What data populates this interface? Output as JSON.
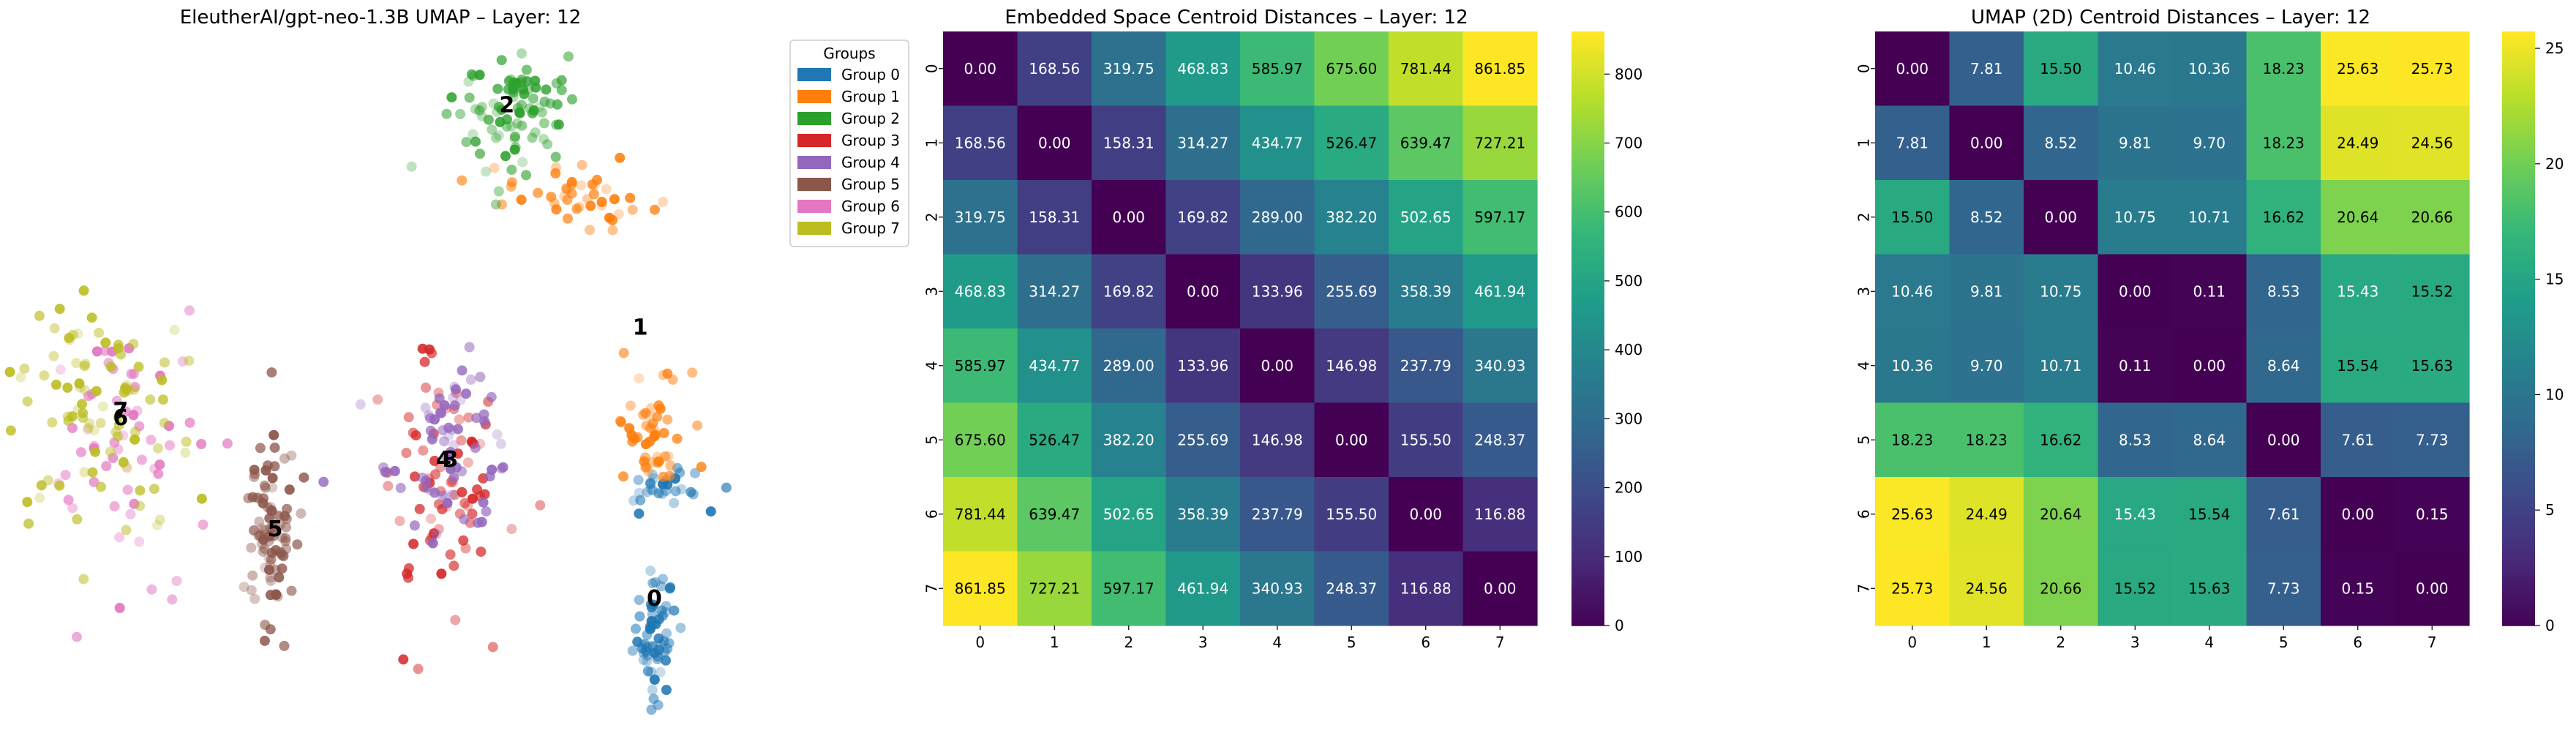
{
  "chart_data": [
    {
      "type": "scatter",
      "title": "EleutherAI/gpt-neo-1.3B UMAP – Layer: 12",
      "legend": {
        "title": "Groups",
        "placement": "top-right",
        "entries": [
          "Group 0",
          "Group 1",
          "Group 2",
          "Group 3",
          "Group 4",
          "Group 5",
          "Group 6",
          "Group 7"
        ]
      },
      "axes_visible": false,
      "xlim": [
        0,
        10
      ],
      "ylim": [
        0,
        10
      ],
      "colors": [
        "#1f77b4",
        "#ff7f0e",
        "#2ca02c",
        "#d62728",
        "#9467bd",
        "#8c564b",
        "#e377c2",
        "#bcbd22"
      ],
      "centroid_labels": [
        {
          "label": "0",
          "x": 8.9,
          "y": 1.9
        },
        {
          "label": "1",
          "x": 8.7,
          "y": 5.8
        },
        {
          "label": "2",
          "x": 6.8,
          "y": 9.0
        },
        {
          "label": "3",
          "x": 6.0,
          "y": 3.9
        },
        {
          "label": "4",
          "x": 5.9,
          "y": 3.9
        },
        {
          "label": "5",
          "x": 3.5,
          "y": 2.9
        },
        {
          "label": "6",
          "x": 1.3,
          "y": 4.5
        },
        {
          "label": "7",
          "x": 1.3,
          "y": 4.6
        }
      ],
      "series": [
        {
          "name": "Group 0",
          "clusters": [
            {
              "cx": 8.9,
              "cy": 1.4,
              "sx": 0.15,
              "sy": 0.45,
              "n": 60
            },
            {
              "cx": 9.0,
              "cy": 3.5,
              "sx": 0.35,
              "sy": 0.15,
              "n": 30
            }
          ]
        },
        {
          "name": "Group 1",
          "clusters": [
            {
              "cx": 8.85,
              "cy": 4.3,
              "sx": 0.25,
              "sy": 0.45,
              "n": 50
            },
            {
              "cx": 7.9,
              "cy": 7.7,
              "sx": 0.5,
              "sy": 0.2,
              "n": 45
            }
          ]
        },
        {
          "name": "Group 2",
          "clusters": [
            {
              "cx": 6.8,
              "cy": 8.9,
              "sx": 0.4,
              "sy": 0.5,
              "n": 90
            }
          ]
        },
        {
          "name": "Group 3",
          "clusters": [
            {
              "cx": 5.8,
              "cy": 3.6,
              "sx": 0.45,
              "sy": 0.9,
              "n": 80
            }
          ]
        },
        {
          "name": "Group 4",
          "clusters": [
            {
              "cx": 6.0,
              "cy": 4.1,
              "sx": 0.45,
              "sy": 0.6,
              "n": 70
            }
          ]
        },
        {
          "name": "Group 5",
          "clusters": [
            {
              "cx": 3.4,
              "cy": 2.8,
              "sx": 0.2,
              "sy": 0.75,
              "n": 90
            }
          ]
        },
        {
          "name": "Group 6",
          "clusters": [
            {
              "cx": 1.3,
              "cy": 4.4,
              "sx": 0.55,
              "sy": 0.9,
              "n": 60
            }
          ]
        },
        {
          "name": "Group 7",
          "clusters": [
            {
              "cx": 1.0,
              "cy": 4.6,
              "sx": 0.7,
              "sy": 0.85,
              "n": 90
            }
          ]
        }
      ]
    },
    {
      "type": "heatmap",
      "title": "Embedded Space Centroid Distances – Layer: 12",
      "x_categories": [
        "0",
        "1",
        "2",
        "3",
        "4",
        "5",
        "6",
        "7"
      ],
      "y_categories": [
        "0",
        "1",
        "2",
        "3",
        "4",
        "5",
        "6",
        "7"
      ],
      "colormap": "viridis",
      "vmin": 0,
      "vmax": 861.85,
      "colorbar_ticks": [
        0,
        100,
        200,
        300,
        400,
        500,
        600,
        700,
        800
      ],
      "values": [
        [
          0.0,
          168.56,
          319.75,
          468.83,
          585.97,
          675.6,
          781.44,
          861.85
        ],
        [
          168.56,
          0.0,
          158.31,
          314.27,
          434.77,
          526.47,
          639.47,
          727.21
        ],
        [
          319.75,
          158.31,
          0.0,
          169.82,
          289.0,
          382.2,
          502.65,
          597.17
        ],
        [
          468.83,
          314.27,
          169.82,
          0.0,
          133.96,
          255.69,
          358.39,
          461.94
        ],
        [
          585.97,
          434.77,
          289.0,
          133.96,
          0.0,
          146.98,
          237.79,
          340.93
        ],
        [
          675.6,
          526.47,
          382.2,
          255.69,
          146.98,
          0.0,
          155.5,
          248.37
        ],
        [
          781.44,
          639.47,
          502.65,
          358.39,
          237.79,
          155.5,
          0.0,
          116.88
        ],
        [
          861.85,
          727.21,
          597.17,
          461.94,
          340.93,
          248.37,
          116.88,
          0.0
        ]
      ]
    },
    {
      "type": "heatmap",
      "title": "UMAP (2D) Centroid Distances – Layer: 12",
      "x_categories": [
        "0",
        "1",
        "2",
        "3",
        "4",
        "5",
        "6",
        "7"
      ],
      "y_categories": [
        "0",
        "1",
        "2",
        "3",
        "4",
        "5",
        "6",
        "7"
      ],
      "colormap": "viridis",
      "vmin": 0,
      "vmax": 25.73,
      "colorbar_ticks": [
        0,
        5,
        10,
        15,
        20,
        25
      ],
      "values": [
        [
          0.0,
          7.81,
          15.5,
          10.46,
          10.36,
          18.23,
          25.63,
          25.73
        ],
        [
          7.81,
          0.0,
          8.52,
          9.81,
          9.7,
          18.23,
          24.49,
          24.56
        ],
        [
          15.5,
          8.52,
          0.0,
          10.75,
          10.71,
          16.62,
          20.64,
          20.66
        ],
        [
          10.46,
          9.81,
          10.75,
          0.0,
          0.11,
          8.53,
          15.43,
          15.52
        ],
        [
          10.36,
          9.7,
          10.71,
          0.11,
          0.0,
          8.64,
          15.54,
          15.63
        ],
        [
          18.23,
          18.23,
          16.62,
          8.53,
          8.64,
          0.0,
          7.61,
          7.73
        ],
        [
          25.63,
          24.49,
          20.64,
          15.43,
          15.54,
          7.61,
          0.0,
          0.15
        ],
        [
          25.73,
          24.56,
          20.66,
          15.52,
          15.63,
          7.73,
          0.15,
          0.0
        ]
      ]
    }
  ]
}
